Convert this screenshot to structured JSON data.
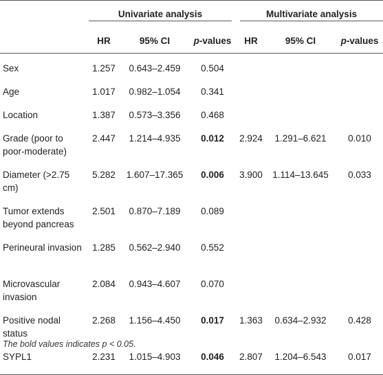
{
  "header": {
    "groups": [
      "Univariate analysis",
      "Multivariate analysis"
    ],
    "columns": [
      "HR",
      "95% CI",
      "p",
      "-values",
      "HR",
      "95% CI",
      "p",
      "-values"
    ]
  },
  "rows": [
    {
      "variable": "Sex",
      "u_hr": "1.257",
      "u_ci": "0.643–2.459",
      "u_p": "0.504",
      "m_hr": "",
      "m_ci": "",
      "m_p": ""
    },
    {
      "variable": "Age",
      "u_hr": "1.017",
      "u_ci": "0.982–1.054",
      "u_p": "0.341",
      "m_hr": "",
      "m_ci": "",
      "m_p": ""
    },
    {
      "variable": "Location",
      "u_hr": "1.387",
      "u_ci": "0.573–3.356",
      "u_p": "0.468",
      "m_hr": "",
      "m_ci": "",
      "m_p": ""
    },
    {
      "variable": "Grade (poor to poor-moderate)",
      "u_hr": "2.447",
      "u_ci": "1.214–4.935",
      "u_p": "0.012",
      "m_hr": "2.924",
      "m_ci": "1.291–6.621",
      "m_p": "0.010"
    },
    {
      "variable": "Diameter (>2.75 cm)",
      "u_hr": "5.282",
      "u_ci": "1.607–17.365",
      "u_p": "0.006",
      "m_hr": "3.900",
      "m_ci": "1.114–13.645",
      "m_p": "0.033"
    },
    {
      "variable": "Tumor extends beyond pancreas",
      "u_hr": "2.501",
      "u_ci": "0.870–7.189",
      "u_p": "0.089",
      "m_hr": "",
      "m_ci": "",
      "m_p": ""
    },
    {
      "variable": "Perineural invasion",
      "u_hr": "1.285",
      "u_ci": "0.562–2.940",
      "u_p": "0.552",
      "m_hr": "",
      "m_ci": "",
      "m_p": ""
    },
    {
      "variable": "Microvascular invasion",
      "u_hr": "2.084",
      "u_ci": "0.943–4.607",
      "u_p": "0.070",
      "m_hr": "",
      "m_ci": "",
      "m_p": ""
    },
    {
      "variable": "Positive nodal status",
      "u_hr": "2.268",
      "u_ci": "1.156–4.450",
      "u_p": "0.017",
      "m_hr": "1.363",
      "m_ci": "0.634–2.932",
      "m_p": "0.428"
    },
    {
      "variable": "SYPL1",
      "u_hr": "2.231",
      "u_ci": "1.015–4.903",
      "u_p": "0.046",
      "m_hr": "2.807",
      "m_ci": "1.204–6.543",
      "m_p": "0.017"
    }
  ],
  "footnote": "The bold values indicates p < 0.05."
}
